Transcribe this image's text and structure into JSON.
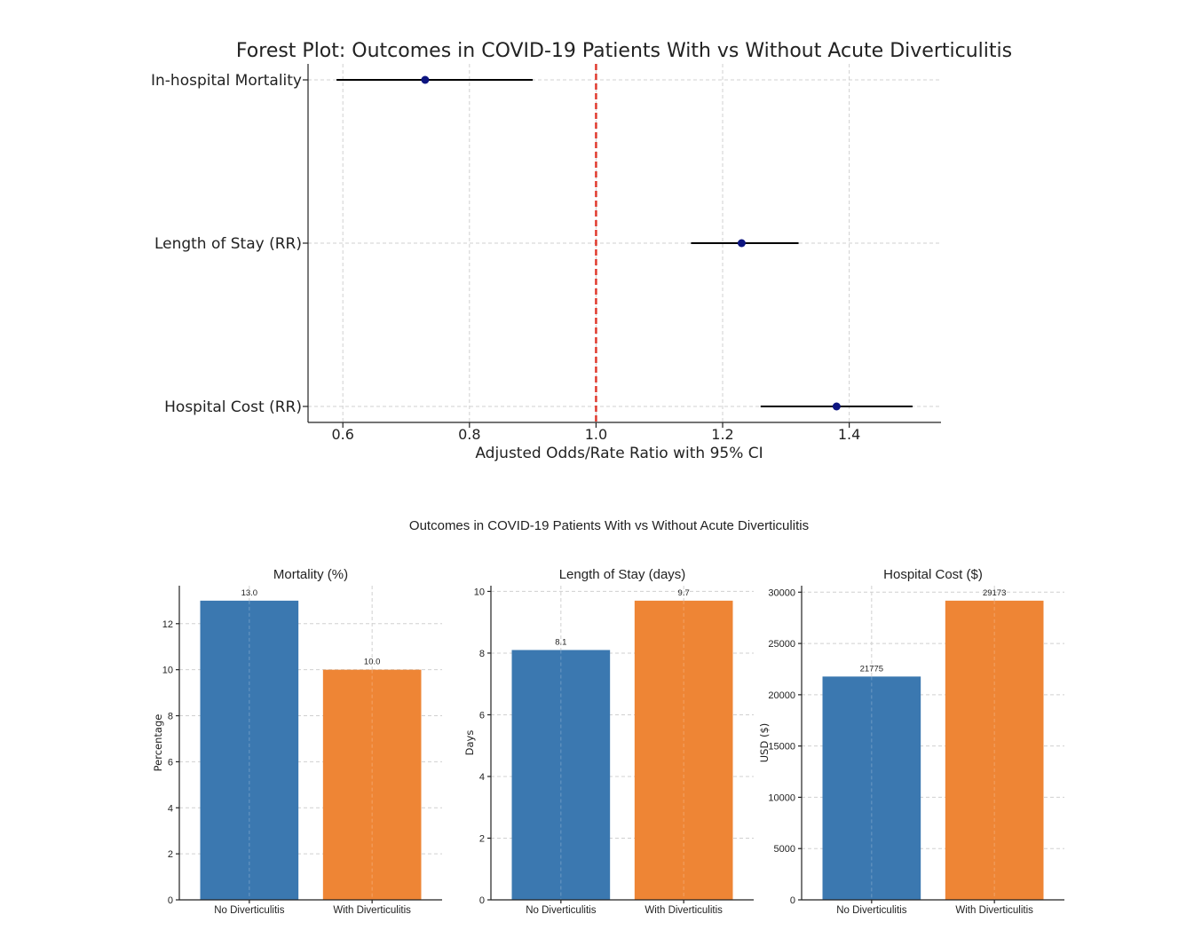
{
  "figure": {
    "forest_title": "Forest Plot: Outcomes in COVID-19 Patients With vs Without Acute Diverticulitis",
    "bar_suptitle": "Outcomes in COVID-19 Patients With vs Without Acute Diverticulitis"
  },
  "colors": {
    "point": "#0d1580",
    "ci_line": "#000000",
    "ref_line": "#e03a2e",
    "bar_no": "#3b78b0",
    "bar_with": "#ee8535"
  },
  "chart_data": [
    {
      "type": "scatter",
      "title": "Forest Plot: Outcomes in COVID-19 Patients With vs Without Acute Diverticulitis",
      "xlabel": "Adjusted Odds/Rate Ratio with 95% CI",
      "ylabel": "",
      "xlim": [
        0.545,
        1.545
      ],
      "xticks": [
        "0.6",
        "0.8",
        "1.0",
        "1.2",
        "1.4"
      ],
      "reference_line": 1.0,
      "grid": true,
      "series": [
        {
          "categories": [
            "In-hospital Mortality",
            "Length of Stay (RR)",
            "Hospital Cost (RR)"
          ],
          "estimate": [
            0.73,
            1.23,
            1.38
          ],
          "ci_low": [
            0.59,
            1.15,
            1.26
          ],
          "ci_high": [
            0.9,
            1.32,
            1.5
          ]
        }
      ]
    },
    {
      "type": "bar",
      "title": "Mortality (%)",
      "xlabel": "",
      "ylabel": "Percentage",
      "categories": [
        "No Diverticulitis",
        "With Diverticulitis"
      ],
      "values": [
        13.0,
        10.0
      ],
      "value_labels": [
        "13.0",
        "10.0"
      ],
      "ylim": [
        0,
        13.65
      ],
      "yticks": [
        "0",
        "2",
        "4",
        "6",
        "8",
        "10",
        "12"
      ],
      "grid": true
    },
    {
      "type": "bar",
      "title": "Length of Stay (days)",
      "xlabel": "",
      "ylabel": "Days",
      "categories": [
        "No Diverticulitis",
        "With Diverticulitis"
      ],
      "values": [
        8.1,
        9.7
      ],
      "value_labels": [
        "8.1",
        "9.7"
      ],
      "ylim": [
        0,
        10.185
      ],
      "yticks": [
        "0",
        "2",
        "4",
        "6",
        "8",
        "10"
      ],
      "grid": true
    },
    {
      "type": "bar",
      "title": "Hospital Cost ($)",
      "xlabel": "",
      "ylabel": "USD ($)",
      "categories": [
        "No Diverticulitis",
        "With Diverticulitis"
      ],
      "values": [
        21775,
        29173
      ],
      "value_labels": [
        "21775",
        "29173"
      ],
      "ylim": [
        0,
        30632
      ],
      "yticks": [
        "0",
        "5000",
        "10000",
        "15000",
        "20000",
        "25000",
        "30000"
      ],
      "grid": true
    }
  ]
}
